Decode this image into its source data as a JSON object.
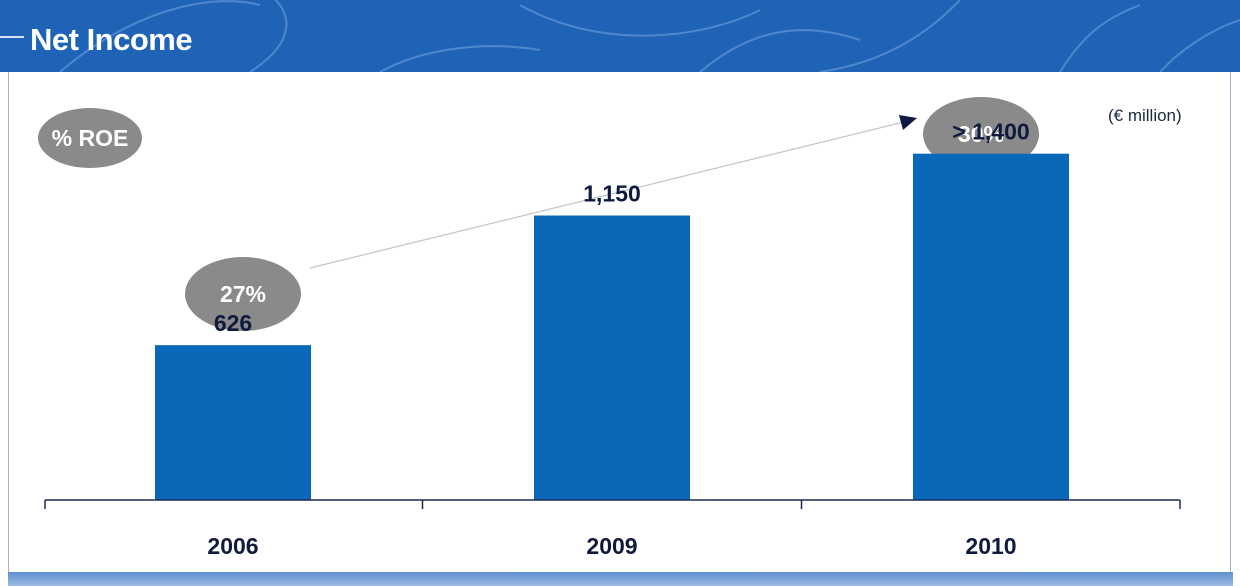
{
  "header": {
    "title": "Net Income"
  },
  "unit_label": "(€ million)",
  "roe_label": "% ROE",
  "colors": {
    "bar": "#0968b8",
    "header": "#1f63b7",
    "ellipse": "#8a8a8a",
    "text": "#101a3c"
  },
  "chart_data": {
    "type": "bar",
    "title": "Net Income",
    "categories": [
      "2006",
      "2009",
      "2010"
    ],
    "values": [
      626,
      1150,
      1400
    ],
    "value_labels": [
      "626",
      "1,150",
      "> 1,400"
    ],
    "ylim": [
      0,
      1900
    ],
    "grid": false,
    "roe": [
      {
        "category": "2006",
        "label": "27%"
      },
      {
        "category": "2010",
        "label": "30%"
      }
    ]
  }
}
